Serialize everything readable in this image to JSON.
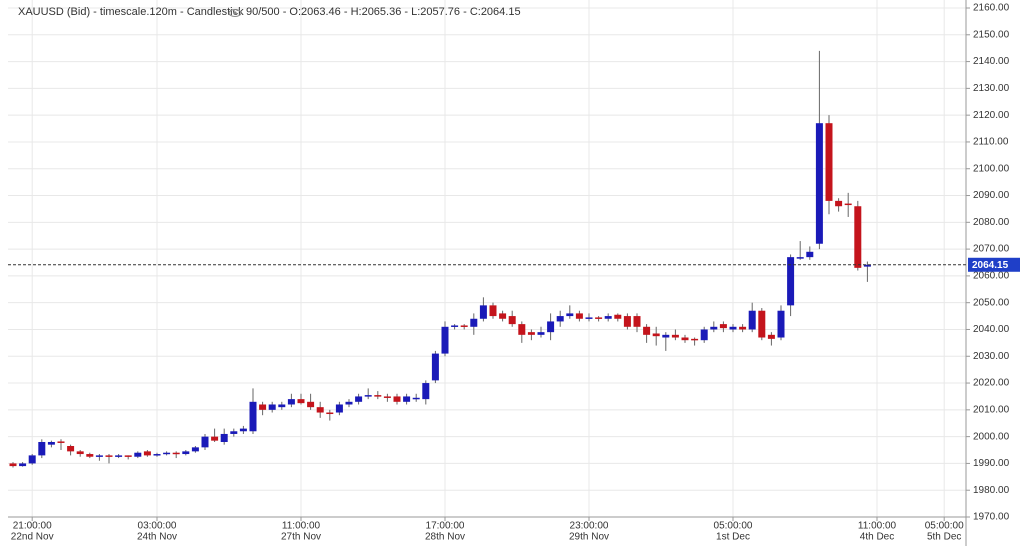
{
  "chart_data": {
    "type": "candlestick",
    "title": "XAUUSD (Bid) - timescale.120m - Candlestick",
    "subtitle": "90/500 - O:2063.46 - H:2065.36 - L:2057.76 - C:2064.15",
    "up_color": "#1a1ab8",
    "down_color": "#c4141c",
    "open": [
      1990,
      1989,
      1990,
      1993,
      1997,
      1998.2,
      1996.5,
      1994.5,
      1993.5,
      1992.5,
      1993,
      1992.5,
      1993,
      1992.5,
      1994.5,
      1993,
      1993.5,
      1994,
      1993.5,
      1994.5,
      1996,
      2000,
      1998,
      2001,
      2002,
      2002,
      2012,
      2010,
      2011,
      2012,
      2014,
      2013,
      2011,
      2009,
      2009,
      2012,
      2013,
      2015,
      2015.5,
      2015,
      2015,
      2013,
      2014,
      2014,
      2021,
      2031,
      2041,
      2041.5,
      2041,
      2044,
      2049,
      2046,
      2045,
      2042,
      2039,
      2038,
      2039,
      2043,
      2045,
      2046,
      2044,
      2044.5,
      2044,
      2045.5,
      2045,
      2045,
      2041,
      2038.5,
      2037,
      2038,
      2037,
      2036.5,
      2036,
      2040,
      2042,
      2040,
      2041,
      2040,
      2047,
      2038,
      2037,
      2049,
      2066.5,
      2067,
      2072,
      2117,
      2088,
      2087,
      2086,
      2063.46
    ],
    "high": [
      1990.5,
      1990.5,
      1993.5,
      1999,
      1998.5,
      1999,
      1997,
      1995,
      1994,
      1993.5,
      1993.5,
      1993.5,
      1993,
      1994.5,
      1995,
      1994,
      1994.5,
      1994.5,
      1995,
      1996.5,
      2001,
      2003,
      2003,
      2003,
      2004,
      2018,
      2013,
      2013,
      2013,
      2016,
      2016,
      2016,
      2013,
      2010,
      2013,
      2014,
      2016,
      2018,
      2017,
      2016,
      2016,
      2016,
      2016,
      2021,
      2032,
      2043,
      2042,
      2042,
      2046,
      2052,
      2050,
      2047,
      2047,
      2043,
      2040,
      2041,
      2046,
      2047,
      2049,
      2047,
      2046,
      2045,
      2046,
      2046,
      2046,
      2046,
      2042,
      2041,
      2039,
      2040,
      2038,
      2037,
      2041,
      2043,
      2043,
      2042,
      2042,
      2050,
      2048,
      2039,
      2049,
      2068,
      2073,
      2071,
      2144,
      2120,
      2089,
      2091,
      2088,
      2065.36
    ],
    "low": [
      1988.5,
      1988.8,
      1989.5,
      1992,
      1996,
      1995,
      1993,
      1992.5,
      1992,
      1991,
      1990,
      1992,
      1991.5,
      1992,
      1992.5,
      1992.5,
      1993,
      1992,
      1993,
      1994,
      1995,
      1998,
      1997,
      2000,
      2001,
      2001,
      2008,
      2009,
      2010,
      2011,
      2012,
      2010,
      2007,
      2006,
      2008,
      2011,
      2012,
      2014,
      2014,
      2013,
      2012,
      2012,
      2013,
      2012,
      2020,
      2030,
      2040,
      2040,
      2038,
      2043,
      2044,
      2043,
      2041,
      2035,
      2036,
      2037,
      2036,
      2041,
      2044,
      2043,
      2043,
      2043,
      2043,
      2043,
      2040,
      2039,
      2035,
      2034,
      2032,
      2036,
      2035,
      2034,
      2035,
      2039,
      2039,
      2039,
      2039,
      2039,
      2036,
      2034,
      2036,
      2045,
      2066,
      2066,
      2070,
      2083,
      2084,
      2082,
      2062,
      2057.76
    ],
    "close": [
      1989,
      1990,
      1993,
      1998,
      1998,
      1997.8,
      1994.5,
      1993.5,
      1992.5,
      1993,
      1992.5,
      1993,
      1992.5,
      1994,
      1993,
      1993.5,
      1994,
      1993.5,
      1994.5,
      1996,
      2000,
      1998.5,
      2001,
      2002,
      2003,
      2013,
      2010,
      2012,
      2012,
      2014,
      2012.5,
      2011,
      2009,
      2008.5,
      2012,
      2013,
      2015,
      2015.5,
      2015,
      2014.5,
      2013,
      2015,
      2014.5,
      2020,
      2031,
      2041,
      2041.5,
      2041,
      2044,
      2049,
      2045,
      2044,
      2042,
      2038,
      2038,
      2039,
      2043,
      2045,
      2046,
      2044,
      2044.5,
      2044,
      2045,
      2044,
      2041,
      2041,
      2038,
      2037.5,
      2038,
      2037,
      2036,
      2036,
      2040,
      2041,
      2040.5,
      2041,
      2040,
      2047,
      2037,
      2036.5,
      2047,
      2067,
      2067,
      2069,
      2117,
      2088,
      2086,
      2086.5,
      2063,
      2064.15
    ],
    "last_price": {
      "value": 2064.15,
      "label": "2064.15"
    },
    "ylim": [
      1970,
      2160
    ],
    "yticks": [
      {
        "value": 1970,
        "label": "1970.00"
      },
      {
        "value": 1980,
        "label": "1980.00"
      },
      {
        "value": 1990,
        "label": "1990.00"
      },
      {
        "value": 2000,
        "label": "2000.00"
      },
      {
        "value": 2010,
        "label": "2010.00"
      },
      {
        "value": 2020,
        "label": "2020.00"
      },
      {
        "value": 2030,
        "label": "2030.00"
      },
      {
        "value": 2040,
        "label": "2040.00"
      },
      {
        "value": 2050,
        "label": "2050.00"
      },
      {
        "value": 2060,
        "label": "2060.00"
      },
      {
        "value": 2070,
        "label": "2070.00"
      },
      {
        "value": 2080,
        "label": "2080.00"
      },
      {
        "value": 2090,
        "label": "2090.00"
      },
      {
        "value": 2100,
        "label": "2100.00"
      },
      {
        "value": 2110,
        "label": "2110.00"
      },
      {
        "value": 2120,
        "label": "2120.00"
      },
      {
        "value": 2130,
        "label": "2130.00"
      },
      {
        "value": 2140,
        "label": "2140.00"
      },
      {
        "value": 2150,
        "label": "2150.00"
      },
      {
        "value": 2160,
        "label": "2160.00"
      }
    ],
    "xticks": [
      {
        "value": 2,
        "label": "21:00:00",
        "date": "22nd Nov"
      },
      {
        "value": 15,
        "label": "03:00:00",
        "date": "24th Nov"
      },
      {
        "value": 30,
        "label": "11:00:00",
        "date": "27th Nov"
      },
      {
        "value": 45,
        "label": "17:00:00",
        "date": "28th Nov"
      },
      {
        "value": 60,
        "label": "23:00:00",
        "date": "29th Nov"
      },
      {
        "value": 75,
        "label": "05:00:00",
        "date": "1st Dec"
      },
      {
        "value": 90,
        "label": "11:00:00",
        "date": "4th Dec"
      },
      {
        "value": 97,
        "label": "05:00:00",
        "date": "5th Dec"
      }
    ],
    "grid": true
  }
}
